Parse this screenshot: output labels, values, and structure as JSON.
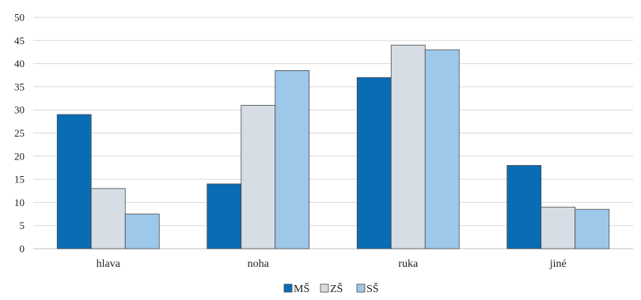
{
  "chart_data": {
    "type": "bar",
    "categories": [
      "hlava",
      "noha",
      "ruka",
      "jiné"
    ],
    "series": [
      {
        "name": "MŠ",
        "values": [
          29,
          14,
          37,
          18
        ],
        "color": "#0a6cb5"
      },
      {
        "name": "ZŠ",
        "values": [
          13,
          31,
          44,
          9
        ],
        "color": "#d6dde4"
      },
      {
        "name": "SŠ",
        "values": [
          7.5,
          38.5,
          43,
          8.5
        ],
        "color": "#9ec8ea"
      }
    ],
    "title": "",
    "xlabel": "",
    "ylabel": "",
    "ylim": [
      0,
      50
    ],
    "yticks": [
      0,
      5,
      10,
      15,
      20,
      25,
      30,
      35,
      40,
      45,
      50
    ],
    "grid": true,
    "legend": "bottom-center"
  }
}
